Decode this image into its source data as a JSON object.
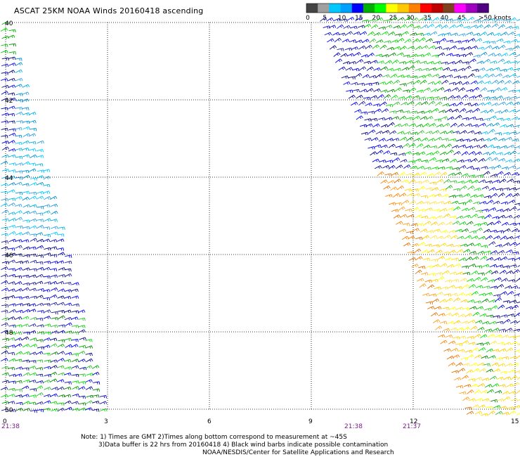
{
  "title": "ASCAT 25KM NOAA Winds 20160418 ascending",
  "legend": {
    "labels": [
      "0",
      "5",
      "10",
      "15",
      "20",
      "25",
      "30",
      "35",
      "40",
      "45",
      ">50 knots"
    ],
    "colors": [
      "#444444",
      "#a0a0a0",
      "#00c8ff",
      "#00a0ff",
      "#0000ff",
      "#00b000",
      "#00ff00",
      "#ffff00",
      "#ffc800",
      "#ff8000",
      "#ff0000",
      "#c00000",
      "#804020",
      "#ff00ff",
      "#a000c0",
      "#500080"
    ]
  },
  "map": {
    "lat_labels": [
      "40",
      "42",
      "44",
      "46",
      "48",
      "50"
    ],
    "lon_labels": [
      "0",
      "3",
      "6",
      "9",
      "12",
      "15"
    ],
    "pass_times": [
      "21:38",
      "21:38",
      "21:37"
    ]
  },
  "notes": {
    "line1": "Note: 1) Times are GMT 2)Times along bottom correspond to measurement at ~45S",
    "line2": "3)Data buffer is 22 hrs from 20160418 4) Black wind barbs indicate possible contamination",
    "line3": "NOAA/NESDIS/Center for Satellite Applications and Research"
  }
}
